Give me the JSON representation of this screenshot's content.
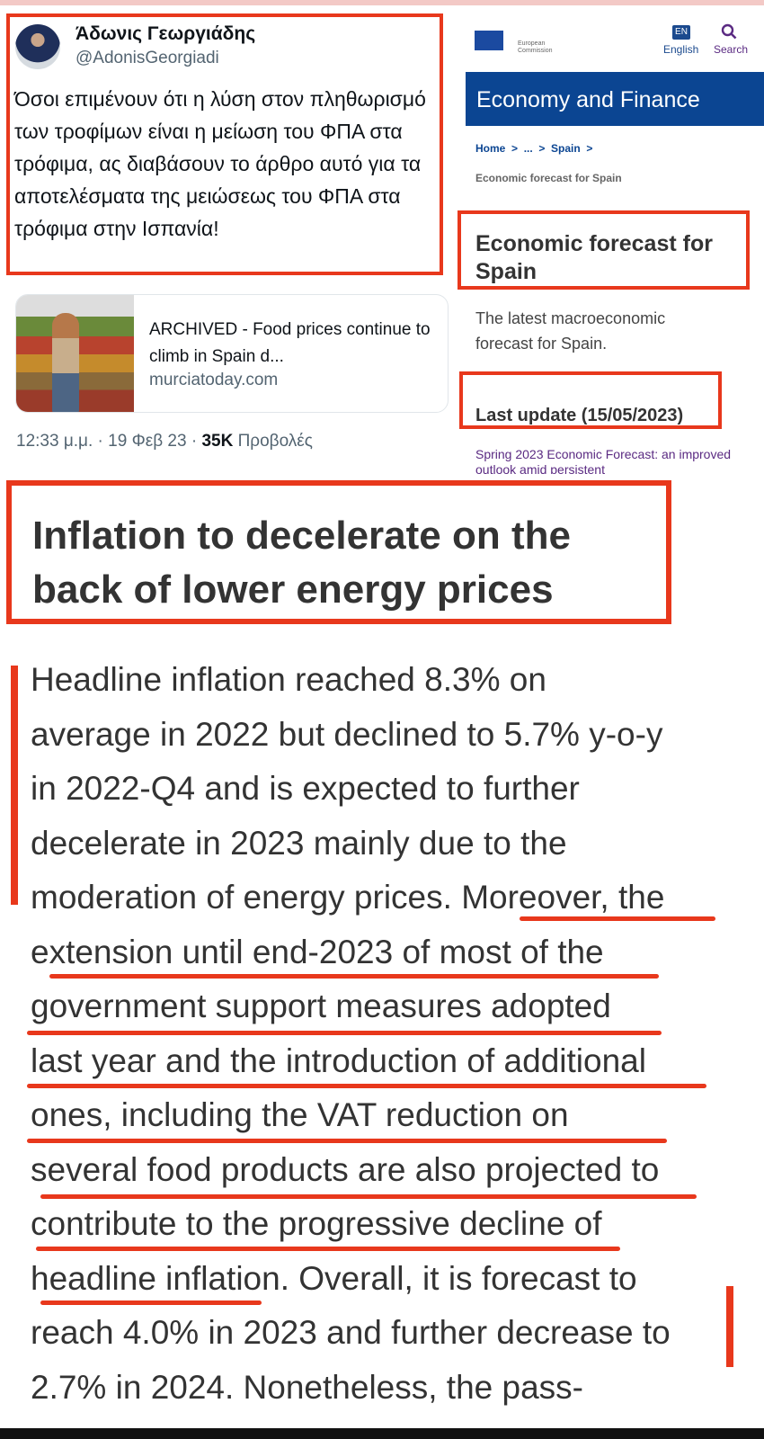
{
  "tweet": {
    "author_name": "Άδωνις Γεωργιάδης",
    "handle": "@AdonisGeorgiadi",
    "text": "Όσοι επιμένουν ότι η λύση στον πληθωρισμό των τροφίμων είναι η μείωση του ΦΠΑ στα τρόφιμα, ας διαβάσουν το άρθρο αυτό για τα αποτελέσματα της μειώσεως του ΦΠΑ στα τρόφιμα στην Ισπανία!",
    "card": {
      "title": "ARCHIVED - Food prices continue to climb in Spain d...",
      "domain": "murciatoday.com"
    },
    "time": "12:33 μ.μ. · 19 Φεβ 23 · ",
    "views_count": "35K",
    "views_label": " Προβολές"
  },
  "ec": {
    "logo_text": "European Commission",
    "lang_code": "EN",
    "lang_label": "English",
    "search_label": "Search",
    "banner": "Economy and Finance",
    "breadcrumb": [
      "Home",
      "...",
      "Spain"
    ],
    "breadcrumb_current": "Economic forecast for Spain",
    "title": "Economic forecast for Spain",
    "subtitle": "The latest macroeconomic forecast for Spain.",
    "last_update": "Last update (15/05/2023)",
    "link": "Spring 2023 Economic Forecast: an improved outlook amid persistent"
  },
  "article": {
    "headline": "Inflation to decelerate on the back of lower energy prices",
    "lines": [
      "Headline inflation reached 8.3% on",
      "average in 2022 but declined to 5.7% y-o-y",
      "in 2022-Q4 and is expected to further",
      "decelerate in 2023 mainly due to the",
      "moderation of energy prices. Moreover, the",
      "extension until end-2023 of most of the",
      "government support measures adopted",
      "last year and the introduction of additional",
      "ones, including the VAT reduction on",
      "several food products are also projected to",
      "contribute to the progressive decline of",
      "headline inflation. Overall, it is forecast to",
      "reach 4.0% in 2023 and further decrease to",
      "2.7% in 2024. Nonetheless, the pass-"
    ]
  },
  "colors": {
    "annotation_red": "#e8381c",
    "ec_blue": "#0b4592"
  }
}
